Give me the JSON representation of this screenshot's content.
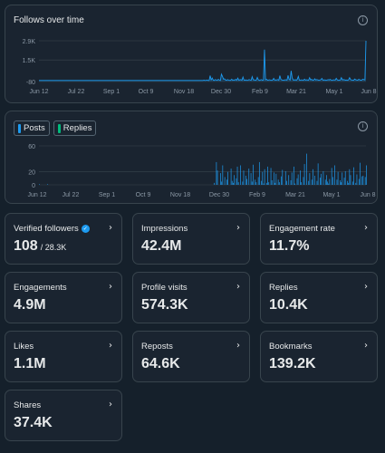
{
  "follows_chart": {
    "title": "Follows over time",
    "y_labels": [
      "2.9K",
      "1.5K",
      "-80"
    ],
    "x_labels": [
      "Jun 12",
      "Jul 22",
      "Sep 1",
      "Oct 9",
      "Nov 18",
      "Dec 30",
      "Feb 9",
      "Mar 21",
      "May 1",
      "Jun 8"
    ],
    "line_color": "#1d9bf0"
  },
  "posts_chart": {
    "legend": [
      {
        "label": "Posts",
        "color": "#1d9bf0"
      },
      {
        "label": "Replies",
        "color": "#00ba7c"
      }
    ],
    "y_labels": [
      "60",
      "20",
      "0"
    ],
    "x_labels": [
      "Jun 12",
      "Jul 22",
      "Sep 1",
      "Oct 9",
      "Nov 18",
      "Dec 30",
      "Feb 9",
      "Mar 21",
      "May 1",
      "Jun 8"
    ]
  },
  "chart_data": [
    {
      "type": "line",
      "ylim": [
        -80,
        2900
      ],
      "x_range": [
        "Jun 12",
        "Jun 8"
      ],
      "series": [
        {
          "values": [
            0,
            0,
            0,
            0,
            0,
            0,
            0,
            0,
            0,
            0,
            0,
            0,
            0,
            0,
            0,
            0,
            0,
            0,
            0,
            0,
            0,
            0,
            0,
            0,
            0,
            0,
            0,
            0,
            0,
            0,
            0,
            0,
            0,
            0,
            0,
            0,
            0,
            0,
            0,
            0,
            0,
            0,
            0,
            0,
            0,
            0,
            0,
            0,
            0,
            0,
            0,
            0,
            0,
            0,
            0,
            0,
            0,
            0,
            0,
            0,
            0,
            0,
            0,
            0,
            0,
            0,
            0,
            0,
            0,
            0,
            0,
            0,
            0,
            0,
            0,
            0,
            0,
            0,
            0,
            0,
            0,
            0,
            0,
            0,
            0,
            0,
            0,
            0,
            0,
            0,
            0,
            0,
            0,
            0,
            0,
            0,
            0,
            0,
            0,
            0,
            0,
            0,
            0,
            0,
            0,
            0,
            0,
            0,
            0,
            0,
            0,
            0,
            0,
            0,
            0,
            0,
            0,
            0,
            0,
            0,
            0,
            0,
            0,
            0,
            0,
            0,
            0,
            0,
            0,
            0,
            0,
            0,
            0,
            0,
            0,
            0,
            0,
            0,
            0,
            0,
            0,
            0,
            0,
            0,
            0,
            0,
            0,
            0,
            0,
            0,
            0,
            0,
            0,
            0,
            0,
            0,
            0,
            0,
            0,
            0,
            0,
            20,
            0,
            10,
            30,
            0,
            0,
            350,
            40,
            180,
            20,
            0,
            60,
            30,
            10,
            80,
            20,
            0,
            460,
            300,
            90,
            120,
            30,
            10,
            60,
            25,
            5,
            10,
            90,
            15,
            40,
            20,
            80,
            10,
            170,
            10,
            50,
            60,
            10,
            250,
            30,
            20,
            40,
            10,
            15,
            60,
            30,
            10,
            270,
            40,
            45,
            10,
            20,
            220,
            50,
            5,
            30,
            60,
            10,
            30,
            2250,
            40,
            80,
            20,
            30,
            50,
            20,
            10,
            30,
            150,
            20,
            40,
            30,
            60,
            10,
            350,
            80,
            30,
            20,
            10,
            50,
            40,
            20,
            370,
            90,
            30,
            700,
            200,
            40,
            20,
            60,
            10,
            80,
            300,
            20,
            15,
            40,
            30,
            10,
            90,
            20,
            50,
            30,
            10,
            200,
            40,
            80,
            10,
            20,
            120,
            30,
            60,
            40,
            10,
            30,
            50,
            150,
            20,
            30,
            40,
            10,
            20,
            60,
            30,
            80,
            20,
            10,
            30,
            50,
            20,
            150,
            40,
            10,
            20,
            30,
            200,
            40,
            60,
            50,
            20,
            30,
            10,
            40,
            200,
            60,
            30,
            20,
            10,
            100,
            50,
            30,
            20,
            80,
            40,
            20,
            30,
            90,
            60,
            40,
            2900
          ]
        }
      ]
    },
    {
      "type": "bar",
      "ylim": [
        0,
        60
      ],
      "x_range": [
        "Jun 12",
        "Jun 8"
      ],
      "series": [
        {
          "name": "Posts",
          "values": [
            1,
            0,
            0,
            0,
            0,
            0,
            0,
            0,
            1,
            0,
            0,
            0,
            0,
            0,
            0,
            0,
            0,
            0,
            0,
            0,
            0,
            0,
            0,
            0,
            0,
            0,
            0,
            0,
            0,
            0,
            0,
            0,
            0,
            0,
            0,
            0,
            0,
            0,
            0,
            0,
            0,
            0,
            0,
            0,
            0,
            0,
            0,
            0,
            0,
            0,
            0,
            0,
            0,
            0,
            0,
            0,
            0,
            0,
            0,
            0,
            0,
            0,
            0,
            0,
            0,
            0,
            0,
            0,
            0,
            0,
            0,
            0,
            0,
            0,
            0,
            0,
            0,
            0,
            0,
            0,
            0,
            0,
            0,
            0,
            0,
            0,
            0,
            0,
            0,
            0,
            0,
            0,
            0,
            0,
            0,
            0,
            0,
            0,
            0,
            0,
            0,
            0,
            0,
            0,
            0,
            0,
            0,
            0,
            0,
            0,
            0,
            0,
            0,
            0,
            0,
            0,
            0,
            0,
            0,
            0,
            0,
            0,
            0,
            0,
            0,
            0,
            0,
            0,
            0,
            0,
            0,
            0,
            0,
            0,
            0,
            0,
            0,
            0,
            0,
            0,
            0,
            0,
            0,
            0,
            0,
            0,
            0,
            0,
            0,
            0,
            0,
            0,
            0,
            0,
            0,
            0,
            0,
            0,
            0,
            0,
            0,
            0,
            0,
            0,
            0,
            0,
            0,
            3,
            0,
            35,
            22,
            0,
            0,
            18,
            5,
            30,
            0,
            12,
            0,
            8,
            20,
            0,
            0,
            25,
            6,
            3,
            15,
            0,
            10,
            28,
            4,
            0,
            30,
            0,
            5,
            22,
            0,
            14,
            9,
            0,
            25,
            0,
            18,
            5,
            31,
            0,
            8,
            4,
            0,
            12,
            35,
            0,
            6,
            20,
            2,
            24,
            0,
            3,
            28,
            4,
            0,
            26,
            7,
            0,
            19,
            3,
            17,
            0,
            8,
            4,
            0,
            13,
            23,
            0,
            0,
            21,
            6,
            0,
            15,
            0,
            7,
            19,
            0,
            28,
            2,
            0,
            10,
            16,
            0,
            22,
            4,
            0,
            12,
            32,
            0,
            48,
            0,
            6,
            18,
            0,
            8,
            24,
            0,
            14,
            0,
            6,
            33,
            0,
            11,
            17,
            0,
            21,
            0,
            8,
            15,
            5,
            2,
            9,
            0,
            26,
            12,
            0,
            30,
            0,
            8,
            20,
            0,
            7,
            4,
            19,
            0,
            11,
            21,
            0,
            6,
            3,
            24,
            15,
            0,
            5,
            27,
            0,
            3,
            16,
            0,
            9,
            34,
            0,
            13,
            14,
            0,
            12,
            30
          ]
        },
        {
          "name": "Replies",
          "values": []
        }
      ]
    }
  ],
  "cards": [
    {
      "label": "Verified followers",
      "value": "108",
      "sub": "/ 28.3K",
      "verified": true
    },
    {
      "label": "Impressions",
      "value": "42.4M"
    },
    {
      "label": "Engagement rate",
      "value": "11.7%"
    },
    {
      "label": "Engagements",
      "value": "4.9M"
    },
    {
      "label": "Profile visits",
      "value": "574.3K"
    },
    {
      "label": "Replies",
      "value": "10.4K"
    },
    {
      "label": "Likes",
      "value": "1.1M"
    },
    {
      "label": "Reposts",
      "value": "64.6K"
    },
    {
      "label": "Bookmarks",
      "value": "139.2K"
    },
    {
      "label": "Shares",
      "value": "37.4K"
    }
  ]
}
